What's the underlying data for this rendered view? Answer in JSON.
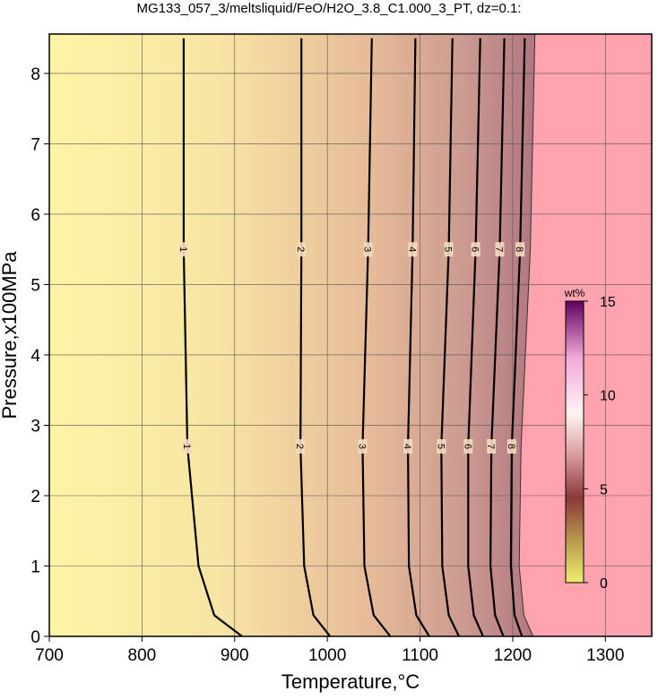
{
  "chart_data": {
    "type": "contour",
    "title": "MG133_057_3/meltsliquid/FeO/H2O_3.8_C1.000_3_PT, dz=0.1:",
    "x_label": "Temperature,°C",
    "y_label": "Pressure,x100MPa",
    "xlim": [
      700,
      1350
    ],
    "ylim": [
      0,
      8.56
    ],
    "xticks": [
      700,
      800,
      900,
      1000,
      1100,
      1200,
      1300
    ],
    "yticks": [
      0,
      1,
      2,
      3,
      4,
      5,
      6,
      7,
      8
    ],
    "grid": true,
    "contours": [
      {
        "level": 1,
        "x": [
          845,
          845,
          849,
          861,
          878,
          908
        ],
        "y": [
          8.5,
          5.5,
          2.7,
          1.0,
          0.3,
          0
        ]
      },
      {
        "level": 2,
        "x": [
          972,
          972,
          971,
          975,
          985,
          1003
        ],
        "y": [
          8.5,
          5.5,
          2.7,
          1.0,
          0.3,
          0
        ]
      },
      {
        "level": 3,
        "x": [
          1048,
          1044,
          1038,
          1040,
          1050,
          1068
        ],
        "y": [
          8.5,
          5.5,
          2.7,
          1.0,
          0.3,
          0
        ]
      },
      {
        "level": 4,
        "x": [
          1095,
          1092,
          1087,
          1088,
          1096,
          1110
        ],
        "y": [
          8.5,
          5.5,
          2.7,
          1.0,
          0.3,
          0
        ]
      },
      {
        "level": 5,
        "x": [
          1135,
          1131,
          1123,
          1124,
          1131,
          1142
        ],
        "y": [
          8.5,
          5.5,
          2.7,
          1.0,
          0.3,
          0
        ]
      },
      {
        "level": 6,
        "x": [
          1165,
          1160,
          1152,
          1152,
          1158,
          1168
        ],
        "y": [
          8.5,
          5.5,
          2.7,
          1.0,
          0.3,
          0
        ]
      },
      {
        "level": 7,
        "x": [
          1191,
          1186,
          1177,
          1176,
          1181,
          1190
        ],
        "y": [
          8.5,
          5.5,
          2.7,
          1.0,
          0.3,
          0
        ]
      },
      {
        "level": 8,
        "x": [
          1213,
          1208,
          1199,
          1198,
          1202,
          1210
        ],
        "y": [
          8.5,
          5.5,
          2.7,
          1.0,
          0.3,
          0
        ]
      }
    ],
    "saturation_boundary": {
      "x": [
        1224,
        1219,
        1209,
        1207,
        1212,
        1222
      ],
      "y": [
        8.56,
        5.5,
        2.7,
        1.0,
        0.3,
        0
      ]
    },
    "colorbar": {
      "label": "wt%",
      "lim": [
        0,
        15
      ],
      "ticks": [
        0,
        5,
        10,
        15
      ]
    }
  }
}
